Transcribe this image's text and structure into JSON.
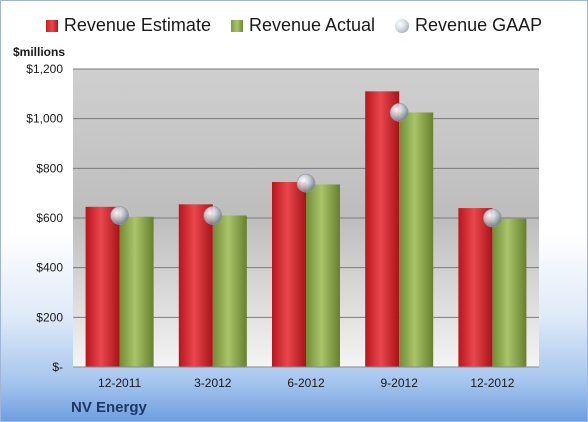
{
  "legend": {
    "estimate": "Revenue Estimate",
    "actual": "Revenue Actual",
    "gaap": "Revenue GAAP"
  },
  "unit_label": "$millions",
  "company": "NV Energy",
  "colors": {
    "estimate": "#d42a30",
    "actual": "#93ad52",
    "gaap": "#c6ccd6"
  },
  "chart_data": {
    "type": "bar",
    "title": "",
    "xlabel": "",
    "ylabel": "$millions",
    "categories": [
      "12-2011",
      "3-2012",
      "6-2012",
      "9-2012",
      "12-2012"
    ],
    "series": [
      {
        "name": "Revenue Estimate",
        "type": "bar",
        "values": [
          645,
          655,
          745,
          1110,
          640
        ]
      },
      {
        "name": "Revenue Actual",
        "type": "bar",
        "values": [
          605,
          610,
          735,
          1025,
          597
        ]
      },
      {
        "name": "Revenue GAAP",
        "type": "scatter",
        "values": [
          610,
          610,
          740,
          1025,
          600
        ]
      }
    ],
    "ylim": [
      0,
      1200
    ],
    "yticks": [
      0,
      200,
      400,
      600,
      800,
      1000,
      1200
    ],
    "ytick_labels": [
      "$-",
      "$200",
      "$400",
      "$600",
      "$800",
      "$1,000",
      "$1,200"
    ],
    "grid": true,
    "legend_position": "top"
  }
}
